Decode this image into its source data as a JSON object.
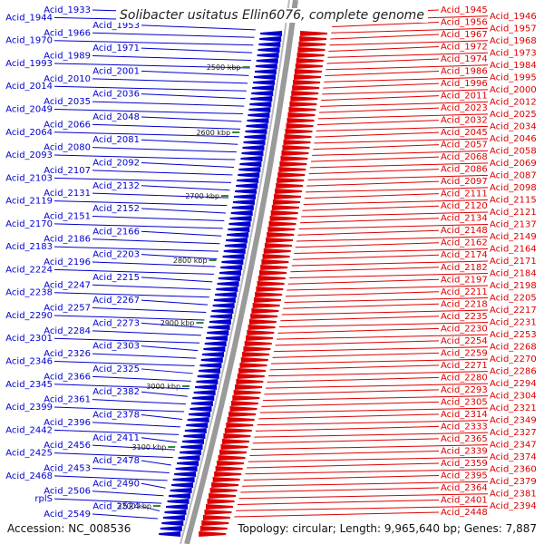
{
  "title": "Solibacter usitatus Ellin6076, complete genome",
  "footer": {
    "accession": "Accession: NC_008536",
    "topology": "Topology: circular; Length: 9,965,640 bp; Genes: 7,887"
  },
  "colors": {
    "left_strand": "#0000cc",
    "right_strand": "#dd0000",
    "backbone": "#777777",
    "tick": "#2e8b2e"
  },
  "scale_ticks": [
    "2500 kbp",
    "2600 kbp",
    "2700 kbp",
    "2800 kbp",
    "2900 kbp",
    "3000 kbp",
    "3100 kbp",
    "3200 kbp"
  ],
  "left_labels": [
    "Acid_1933",
    "Acid_1944",
    "Acid_1953",
    "Acid_1966",
    "Acid_1970",
    "Acid_1971",
    "Acid_1989",
    "Acid_1993",
    "Acid_2001",
    "Acid_2010",
    "Acid_2014",
    "Acid_2036",
    "Acid_2035",
    "Acid_2049",
    "Acid_2048",
    "Acid_2066",
    "Acid_2064",
    "Acid_2081",
    "Acid_2080",
    "Acid_2093",
    "Acid_2092",
    "Acid_2107",
    "Acid_2103",
    "Acid_2132",
    "Acid_2131",
    "Acid_2119",
    "Acid_2152",
    "Acid_2151",
    "Acid_2170",
    "Acid_2166",
    "Acid_2186",
    "Acid_2183",
    "Acid_2203",
    "Acid_2196",
    "Acid_2224",
    "Acid_2215",
    "Acid_2247",
    "Acid_2238",
    "Acid_2267",
    "Acid_2257",
    "Acid_2290",
    "Acid_2273",
    "Acid_2284",
    "Acid_2301",
    "Acid_2303",
    "Acid_2326",
    "Acid_2346",
    "Acid_2325",
    "Acid_2366",
    "Acid_2345",
    "Acid_2382",
    "Acid_2361",
    "Acid_2399",
    "Acid_2378",
    "Acid_2396",
    "Acid_2442",
    "Acid_2411",
    "Acid_2456",
    "Acid_2425",
    "Acid_2478",
    "Acid_2453",
    "Acid_2468",
    "Acid_2490",
    "Acid_2506",
    "rplS",
    "Acid_2524",
    "Acid_2549"
  ],
  "right_labels": [
    "Acid_1945",
    "Acid_1946",
    "Acid_1956",
    "Acid_1957",
    "Acid_1967",
    "Acid_1968",
    "Acid_1972",
    "Acid_1973",
    "Acid_1974",
    "Acid_1984",
    "Acid_1986",
    "Acid_1995",
    "Acid_1996",
    "Acid_2000",
    "Acid_2011",
    "Acid_2012",
    "Acid_2023",
    "Acid_2025",
    "Acid_2032",
    "Acid_2034",
    "Acid_2045",
    "Acid_2046",
    "Acid_2057",
    "Acid_2058",
    "Acid_2068",
    "Acid_2069",
    "Acid_2086",
    "Acid_2087",
    "Acid_2097",
    "Acid_2098",
    "Acid_2111",
    "Acid_2115",
    "Acid_2120",
    "Acid_2121",
    "Acid_2134",
    "Acid_2137",
    "Acid_2148",
    "Acid_2149",
    "Acid_2162",
    "Acid_2164",
    "Acid_2174",
    "Acid_2171",
    "Acid_2182",
    "Acid_2184",
    "Acid_2197",
    "Acid_2198",
    "Acid_2211",
    "Acid_2205",
    "Acid_2218",
    "Acid_2217",
    "Acid_2235",
    "Acid_2231",
    "Acid_2230",
    "Acid_2253",
    "Acid_2254",
    "Acid_2268",
    "Acid_2259",
    "Acid_2270",
    "Acid_2271",
    "Acid_2286",
    "Acid_2280",
    "Acid_2294",
    "Acid_2293",
    "Acid_2304",
    "Acid_2305",
    "Acid_2321",
    "Acid_2314",
    "Acid_2349",
    "Acid_2333",
    "Acid_2327",
    "Acid_2365",
    "Acid_2347",
    "Acid_2339",
    "Acid_2374",
    "Acid_2359",
    "Acid_2360",
    "Acid_2395",
    "Acid_2379",
    "Acid_2364",
    "Acid_2381",
    "Acid_2401",
    "Acid_2394",
    "Acid_2448"
  ]
}
